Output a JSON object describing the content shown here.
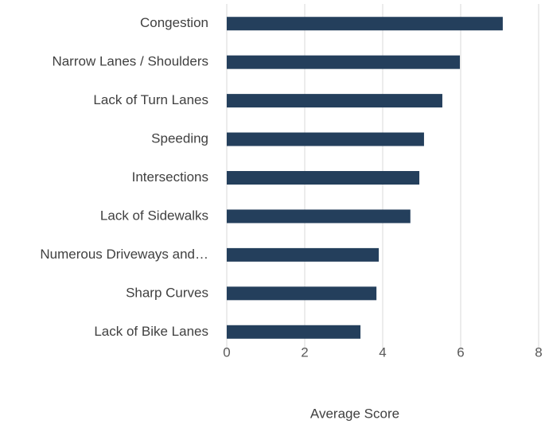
{
  "chart_data": {
    "type": "bar",
    "orientation": "horizontal",
    "x_label": "Average Score",
    "categories": [
      "Congestion",
      "Narrow Lanes / Shoulders",
      "Lack of Turn Lanes",
      "Speeding",
      "Intersections",
      "Lack of Sidewalks",
      "Numerous Driveways and…",
      "Sharp Curves",
      "Lack of Bike Lanes"
    ],
    "values": [
      7.08,
      5.98,
      5.53,
      5.06,
      4.94,
      4.71,
      3.9,
      3.84,
      3.43
    ],
    "color": "#243f5c",
    "xlim": [
      0,
      8
    ],
    "xticks": [
      0,
      2,
      4,
      6,
      8
    ],
    "grid": true
  }
}
